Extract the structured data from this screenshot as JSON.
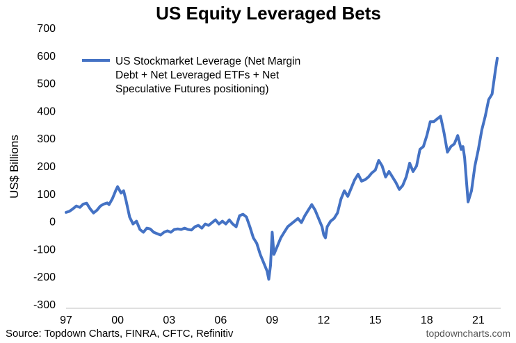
{
  "chart_data": {
    "type": "line",
    "title": "US Equity Leveraged Bets",
    "ylabel": "US$ Billions",
    "xlabel": "",
    "ylim": [
      -300,
      700
    ],
    "yticks": [
      -300,
      -200,
      -100,
      0,
      100,
      200,
      300,
      400,
      500,
      600,
      700
    ],
    "xlim": [
      1997,
      2022.3
    ],
    "xticks": [
      {
        "value": 1997,
        "label": "97"
      },
      {
        "value": 2000,
        "label": "00"
      },
      {
        "value": 2003,
        "label": "03"
      },
      {
        "value": 2006,
        "label": "06"
      },
      {
        "value": 2009,
        "label": "09"
      },
      {
        "value": 2012,
        "label": "12"
      },
      {
        "value": 2015,
        "label": "15"
      },
      {
        "value": 2018,
        "label": "18"
      },
      {
        "value": 2021,
        "label": "21"
      }
    ],
    "grid": false,
    "legend_position": "top-left",
    "series": [
      {
        "name_lines": [
          "US Stockmarket Leverage (Net Margin",
          "Debt + Net Leveraged ETFs + Net",
          "Speculative Futures positioning)"
        ],
        "color": "#4472C4",
        "x": [
          1997.0,
          1997.2,
          1997.4,
          1997.6,
          1997.8,
          1998.0,
          1998.2,
          1998.4,
          1998.6,
          1998.8,
          1999.0,
          1999.2,
          1999.4,
          1999.5,
          1999.7,
          1999.9,
          2000.0,
          2000.2,
          2000.35,
          2000.5,
          2000.7,
          2000.9,
          2001.1,
          2001.3,
          2001.5,
          2001.7,
          2001.9,
          2002.1,
          2002.3,
          2002.5,
          2002.7,
          2002.9,
          2003.1,
          2003.3,
          2003.5,
          2003.7,
          2003.9,
          2004.1,
          2004.3,
          2004.5,
          2004.7,
          2004.9,
          2005.1,
          2005.3,
          2005.5,
          2005.7,
          2005.9,
          2006.1,
          2006.3,
          2006.5,
          2006.7,
          2006.9,
          2007.1,
          2007.3,
          2007.5,
          2007.7,
          2007.9,
          2008.1,
          2008.3,
          2008.5,
          2008.7,
          2008.8,
          2008.9,
          2009.0,
          2009.1,
          2009.3,
          2009.5,
          2009.7,
          2009.9,
          2010.1,
          2010.3,
          2010.5,
          2010.7,
          2010.9,
          2011.1,
          2011.3,
          2011.5,
          2011.7,
          2011.9,
          2012.0,
          2012.1,
          2012.2,
          2012.4,
          2012.6,
          2012.8,
          2013.0,
          2013.2,
          2013.4,
          2013.6,
          2013.8,
          2014.0,
          2014.2,
          2014.4,
          2014.6,
          2014.8,
          2015.0,
          2015.2,
          2015.4,
          2015.6,
          2015.8,
          2016.0,
          2016.2,
          2016.4,
          2016.6,
          2016.8,
          2017.0,
          2017.2,
          2017.4,
          2017.6,
          2017.8,
          2018.0,
          2018.2,
          2018.4,
          2018.6,
          2018.8,
          2019.0,
          2019.2,
          2019.4,
          2019.6,
          2019.8,
          2020.0,
          2020.1,
          2020.2,
          2020.4,
          2020.6,
          2020.8,
          2021.0,
          2021.2,
          2021.4,
          2021.6,
          2021.8,
          2022.0,
          2022.1
        ],
        "y": [
          32,
          36,
          45,
          55,
          50,
          62,
          65,
          45,
          30,
          40,
          55,
          62,
          66,
          60,
          82,
          112,
          125,
          102,
          110,
          72,
          15,
          -10,
          0,
          -30,
          -40,
          -25,
          -28,
          -40,
          -45,
          -50,
          -40,
          -35,
          -40,
          -30,
          -28,
          -30,
          -25,
          -30,
          -32,
          -20,
          -15,
          -25,
          -10,
          -15,
          -5,
          5,
          -10,
          0,
          -10,
          5,
          -10,
          -20,
          20,
          25,
          15,
          -20,
          -60,
          -80,
          -120,
          -150,
          -180,
          -210,
          -160,
          -40,
          -120,
          -90,
          -60,
          -40,
          -20,
          -10,
          0,
          10,
          -5,
          20,
          40,
          60,
          40,
          10,
          -20,
          -50,
          -60,
          -20,
          0,
          10,
          30,
          80,
          110,
          90,
          120,
          150,
          170,
          145,
          150,
          160,
          175,
          185,
          220,
          200,
          160,
          180,
          160,
          140,
          115,
          130,
          160,
          210,
          180,
          200,
          260,
          270,
          310,
          360,
          360,
          370,
          380,
          320,
          250,
          270,
          280,
          310,
          260,
          270,
          230,
          70,
          110,
          200,
          260,
          330,
          380,
          440,
          460,
          550,
          590
        ]
      }
    ],
    "source": "Source: Topdown Charts, FINRA, CFTC, Refinitiv",
    "watermark": "topdowncharts.com"
  }
}
